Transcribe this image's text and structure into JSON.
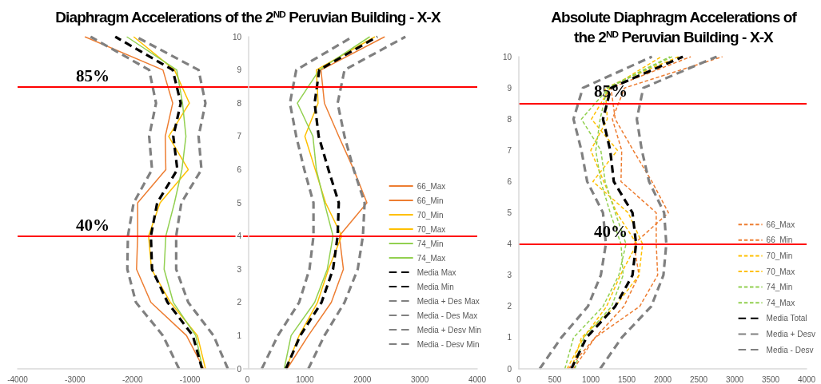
{
  "chart_data": [
    {
      "type": "line",
      "title": "Diaphragm Accelerations of the 2$^{ND}$ Peruvian Building - X-X",
      "xlim": [
        -4000,
        4000
      ],
      "xticks": [
        -4000,
        -3000,
        -2000,
        -1000,
        0,
        1000,
        2000,
        3000,
        4000
      ],
      "ylim": [
        0,
        10
      ],
      "yticks": [
        0,
        1,
        2,
        3,
        4,
        5,
        6,
        7,
        8,
        9,
        10
      ],
      "grid": false,
      "legend": "bottom right",
      "marker": "none",
      "line_style": "solid",
      "ref_lines": [
        {
          "axis": "y",
          "value": 8.5,
          "color": "#ff0000"
        },
        {
          "axis": "y",
          "value": 4,
          "color": "#ff0000"
        }
      ],
      "annotations": [
        "85%",
        "40%"
      ],
      "series": [
        {
          "name": "66_Max",
          "color": "#ed7d31",
          "x": [
            690,
            1060,
            1460,
            1670,
            1600,
            2080,
            1850,
            1590,
            1340,
            1280,
            2390
          ],
          "values": [
            0,
            1,
            2,
            3,
            4,
            5,
            6,
            7,
            8,
            9,
            10
          ]
        },
        {
          "name": "66_Min",
          "color": "#ed7d31",
          "x": [
            -760,
            -1060,
            -1680,
            -1930,
            -1910,
            -1910,
            -1420,
            -1430,
            -1300,
            -1470,
            -2830
          ],
          "values": [
            0,
            1,
            2,
            3,
            4,
            5,
            6,
            7,
            8,
            9,
            10
          ]
        },
        {
          "name": "70_Min",
          "color": "#ffc000",
          "x": [
            -730,
            -870,
            -1340,
            -1670,
            -1720,
            -1520,
            -1030,
            -1370,
            -1010,
            -1270,
            -1980
          ],
          "values": [
            0,
            1,
            2,
            3,
            4,
            5,
            6,
            7,
            8,
            9,
            10
          ]
        },
        {
          "name": "70_Max",
          "color": "#ffc000",
          "x": [
            670,
            900,
            1220,
            1410,
            1640,
            1360,
            1180,
            1000,
            1230,
            1200,
            2220
          ],
          "values": [
            0,
            1,
            2,
            3,
            4,
            5,
            6,
            7,
            8,
            9,
            10
          ]
        },
        {
          "name": "74_Min",
          "color": "#92d050",
          "x": [
            -780,
            -900,
            -1290,
            -1450,
            -1420,
            -1270,
            -1140,
            -1070,
            -1130,
            -1230,
            -2100
          ],
          "values": [
            0,
            1,
            2,
            3,
            4,
            5,
            6,
            7,
            8,
            9,
            10
          ]
        },
        {
          "name": "74_Max",
          "color": "#92d050",
          "x": [
            640,
            760,
            1170,
            1390,
            1490,
            1340,
            1200,
            1140,
            870,
            1250,
            2130
          ],
          "values": [
            0,
            1,
            2,
            3,
            4,
            5,
            6,
            7,
            8,
            9,
            10
          ]
        },
        {
          "name": "Media Max",
          "color": "#000000",
          "line_style": "dashed",
          "x": [
            670,
            920,
            1290,
            1490,
            1570,
            1590,
            1410,
            1240,
            1170,
            1250,
            2260
          ],
          "values": [
            0,
            1,
            2,
            3,
            4,
            5,
            6,
            7,
            8,
            9,
            10
          ]
        },
        {
          "name": "Media Min",
          "color": "#000000",
          "line_style": "dashed",
          "x": [
            -790,
            -950,
            -1390,
            -1660,
            -1680,
            -1570,
            -1220,
            -1290,
            -1160,
            -1300,
            -2300
          ],
          "values": [
            0,
            1,
            2,
            3,
            4,
            5,
            6,
            7,
            8,
            9,
            10
          ]
        },
        {
          "name": "Media + Des Max",
          "color": "#808080",
          "line_style": "dashed",
          "x": [
            1060,
            1340,
            1690,
            1920,
            2010,
            2040,
            1850,
            1690,
            1570,
            1690,
            2750
          ],
          "values": [
            0,
            1,
            2,
            3,
            4,
            5,
            6,
            7,
            8,
            9,
            10
          ]
        },
        {
          "name": "Media - Des Max",
          "color": "#808080",
          "line_style": "dashed",
          "x": [
            250,
            530,
            900,
            1080,
            1150,
            1150,
            990,
            850,
            740,
            850,
            1830
          ],
          "values": [
            0,
            1,
            2,
            3,
            4,
            5,
            6,
            7,
            8,
            9,
            10
          ]
        },
        {
          "name": "Media + Desv Min",
          "color": "#808080",
          "line_style": "dashed",
          "x": [
            -340,
            -590,
            -1030,
            -1240,
            -1240,
            -1150,
            -800,
            -850,
            -730,
            -850,
            -1940
          ],
          "values": [
            0,
            1,
            2,
            3,
            4,
            5,
            6,
            7,
            8,
            9,
            10
          ]
        },
        {
          "name": "Media - Desv Min",
          "color": "#808080",
          "line_style": "dashed",
          "x": [
            -1190,
            -1470,
            -1940,
            -2090,
            -2080,
            -1980,
            -1660,
            -1710,
            -1590,
            -1710,
            -2730
          ],
          "values": [
            0,
            1,
            2,
            3,
            4,
            5,
            6,
            7,
            8,
            9,
            10
          ]
        }
      ]
    },
    {
      "type": "line",
      "title": "Absolute Diaphragm Accelerations of the 2$^{ND}$ Peruvian Building - X-X",
      "xlim": [
        0,
        4000
      ],
      "xticks": [
        0,
        500,
        1000,
        1500,
        2000,
        2500,
        3000,
        3500,
        4000
      ],
      "ylim": [
        0,
        10
      ],
      "yticks": [
        0,
        1,
        2,
        3,
        4,
        5,
        6,
        7,
        8,
        9,
        10
      ],
      "grid": false,
      "legend": "bottom right",
      "marker": "none",
      "line_style": "dashed",
      "ref_lines": [
        {
          "axis": "y",
          "value": 8.5,
          "color": "#ff0000"
        },
        {
          "axis": "y",
          "value": 4,
          "color": "#ff0000"
        }
      ],
      "annotations": [
        "85%",
        "40%"
      ],
      "series": [
        {
          "name": "66_Max",
          "color": "#ed7d31",
          "x": [
            690,
            1060,
            1460,
            1670,
            1600,
            2080,
            1850,
            1590,
            1340,
            1280,
            2390
          ],
          "values": [
            0,
            1,
            2,
            3,
            4,
            5,
            6,
            7,
            8,
            9,
            10
          ]
        },
        {
          "name": "66_Min",
          "color": "#ed7d31",
          "x": [
            760,
            1060,
            1680,
            1930,
            1910,
            1910,
            1420,
            1430,
            1300,
            1470,
            2830
          ],
          "values": [
            0,
            1,
            2,
            3,
            4,
            5,
            6,
            7,
            8,
            9,
            10
          ]
        },
        {
          "name": "70_Min",
          "color": "#ffc000",
          "x": [
            730,
            870,
            1340,
            1670,
            1720,
            1520,
            1030,
            1370,
            1010,
            1270,
            1980
          ],
          "values": [
            0,
            1,
            2,
            3,
            4,
            5,
            6,
            7,
            8,
            9,
            10
          ]
        },
        {
          "name": "70_Max",
          "color": "#ffc000",
          "x": [
            670,
            900,
            1220,
            1410,
            1640,
            1360,
            1180,
            1000,
            1230,
            1200,
            2220
          ],
          "values": [
            0,
            1,
            2,
            3,
            4,
            5,
            6,
            7,
            8,
            9,
            10
          ]
        },
        {
          "name": "74_Min",
          "color": "#92d050",
          "x": [
            780,
            900,
            1290,
            1450,
            1420,
            1270,
            1140,
            1070,
            1130,
            1230,
            2100
          ],
          "values": [
            0,
            1,
            2,
            3,
            4,
            5,
            6,
            7,
            8,
            9,
            10
          ]
        },
        {
          "name": "74_Max",
          "color": "#92d050",
          "x": [
            640,
            760,
            1170,
            1390,
            1490,
            1340,
            1200,
            1140,
            870,
            1250,
            2130
          ],
          "values": [
            0,
            1,
            2,
            3,
            4,
            5,
            6,
            7,
            8,
            9,
            10
          ]
        },
        {
          "name": "Media Total",
          "color": "#000000",
          "x": [
            730,
            940,
            1340,
            1580,
            1630,
            1580,
            1320,
            1270,
            1170,
            1280,
            2280
          ],
          "values": [
            0,
            1,
            2,
            3,
            4,
            5,
            6,
            7,
            8,
            9,
            10
          ]
        },
        {
          "name": "Media + Desv",
          "color": "#808080",
          "x": [
            1130,
            1430,
            1840,
            2010,
            2050,
            2020,
            1810,
            1710,
            1640,
            1730,
            2750
          ],
          "values": [
            0,
            1,
            2,
            3,
            4,
            5,
            6,
            7,
            8,
            9,
            10
          ]
        },
        {
          "name": "Media - Desv",
          "color": "#808080",
          "x": [
            290,
            590,
            960,
            1140,
            1210,
            1170,
            950,
            870,
            760,
            890,
            1850
          ],
          "values": [
            0,
            1,
            2,
            3,
            4,
            5,
            6,
            7,
            8,
            9,
            10
          ]
        }
      ]
    }
  ]
}
